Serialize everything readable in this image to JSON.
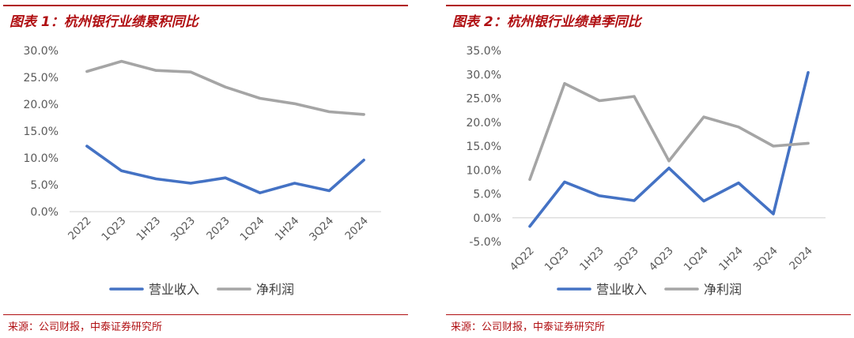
{
  "colors": {
    "accent": "#b00f12",
    "revenue": "#4472c4",
    "net_profit": "#a5a5a5",
    "axis": "#d9d9d9",
    "text": "#595959"
  },
  "panels": [
    {
      "title": "图表 1：杭州银行业绩累积同比",
      "source": "来源：公司财报，中泰证券研究所"
    },
    {
      "title": "图表 2：杭州银行业绩单季同比",
      "source": "来源：公司财报，中泰证券研究所"
    }
  ],
  "chart_data": [
    {
      "type": "line",
      "categories": [
        "2022",
        "1Q23",
        "1H23",
        "3Q23",
        "2023",
        "1Q24",
        "1H24",
        "3Q24",
        "2024"
      ],
      "series": [
        {
          "name": "营业收入",
          "values": [
            12.2,
            7.6,
            6.1,
            5.3,
            6.3,
            3.5,
            5.3,
            3.9,
            9.6
          ]
        },
        {
          "name": "净利润",
          "values": [
            26.1,
            28.0,
            26.3,
            26.0,
            23.2,
            21.1,
            20.1,
            18.6,
            18.1
          ]
        }
      ],
      "ylim": [
        0,
        30
      ],
      "ytick_step": 5,
      "ytick_labels": [
        "0.0%",
        "5.0%",
        "10.0%",
        "15.0%",
        "20.0%",
        "25.0%",
        "30.0%"
      ],
      "grid": false,
      "legend": "bottom"
    },
    {
      "type": "line",
      "categories": [
        "4Q22",
        "1Q23",
        "1H23",
        "3Q23",
        "4Q23",
        "1Q24",
        "1H24",
        "3Q24",
        "2024"
      ],
      "series": [
        {
          "name": "营业收入",
          "values": [
            -1.8,
            7.5,
            4.6,
            3.6,
            10.4,
            3.5,
            7.3,
            0.8,
            30.4
          ]
        },
        {
          "name": "净利润",
          "values": [
            8.0,
            28.1,
            24.5,
            25.4,
            11.9,
            21.1,
            19.0,
            15.0,
            15.6
          ]
        }
      ],
      "ylim": [
        -5,
        35
      ],
      "ytick_step": 5,
      "ytick_labels": [
        "-5.0%",
        "0.0%",
        "5.0%",
        "10.0%",
        "15.0%",
        "20.0%",
        "25.0%",
        "30.0%",
        "35.0%"
      ],
      "grid": false,
      "legend": "bottom"
    }
  ]
}
